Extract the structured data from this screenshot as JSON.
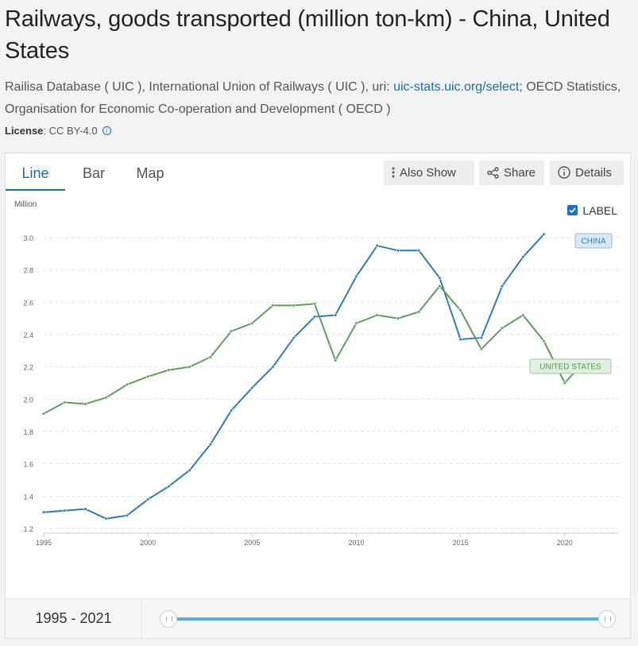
{
  "page": {
    "title": "Railways, goods transported (million ton-km) - China, United States",
    "source_prefix": "Railisa Database ( UIC ), International Union of Railways ( UIC ), uri: ",
    "source_link": "uic-stats.uic.org/select",
    "source_suffix": "; OECD Statistics, Organisation for Economic Co-operation and Development ( OECD )",
    "license_label": "License",
    "license_value": ": CC BY-4.0"
  },
  "tabs": [
    "Line",
    "Bar",
    "Map"
  ],
  "tools": {
    "also_show": "Also Show",
    "share": "Share",
    "details": "Details"
  },
  "legend_toggle": "LABEL",
  "footer": {
    "range": "1995 - 2021"
  },
  "colors": {
    "china": "#2e7cb6",
    "us": "#5ba05a",
    "accent": "#1a6fa8"
  },
  "chart_data": {
    "type": "line",
    "ylabel": "Million",
    "ylim": [
      1.2,
      3.0
    ],
    "yticks": [
      "1.2",
      "1.4",
      "1.6",
      "1.8",
      "2.0",
      "2.2",
      "2.4",
      "2.6",
      "2.8",
      "3.0"
    ],
    "xlim": [
      1995,
      2021
    ],
    "xticks": [
      "1995",
      "2000",
      "2005",
      "2010",
      "2015",
      "2020"
    ],
    "series": [
      {
        "name": "CHINA",
        "x": [
          1995,
          1996,
          1997,
          1998,
          1999,
          2000,
          2001,
          2002,
          2003,
          2004,
          2005,
          2006,
          2007,
          2008,
          2009,
          2010,
          2011,
          2012,
          2013,
          2014,
          2015,
          2016,
          2017,
          2018,
          2019
        ],
        "values": [
          1.3,
          1.31,
          1.32,
          1.26,
          1.28,
          1.38,
          1.46,
          1.56,
          1.72,
          1.93,
          2.07,
          2.2,
          2.38,
          2.51,
          2.52,
          2.76,
          2.95,
          2.92,
          2.92,
          2.75,
          2.37,
          2.38,
          2.7,
          2.88,
          3.02
        ]
      },
      {
        "name": "UNITED STATES",
        "x": [
          1995,
          1996,
          1997,
          1998,
          1999,
          2000,
          2001,
          2002,
          2003,
          2004,
          2005,
          2006,
          2007,
          2008,
          2009,
          2010,
          2011,
          2012,
          2013,
          2014,
          2015,
          2016,
          2017,
          2018,
          2019,
          2020,
          2021
        ],
        "values": [
          1.91,
          1.98,
          1.97,
          2.01,
          2.09,
          2.14,
          2.18,
          2.2,
          2.26,
          2.42,
          2.47,
          2.58,
          2.58,
          2.59,
          2.24,
          2.47,
          2.52,
          2.5,
          2.54,
          2.7,
          2.55,
          2.31,
          2.44,
          2.52,
          2.36,
          2.1,
          2.24
        ]
      }
    ]
  }
}
